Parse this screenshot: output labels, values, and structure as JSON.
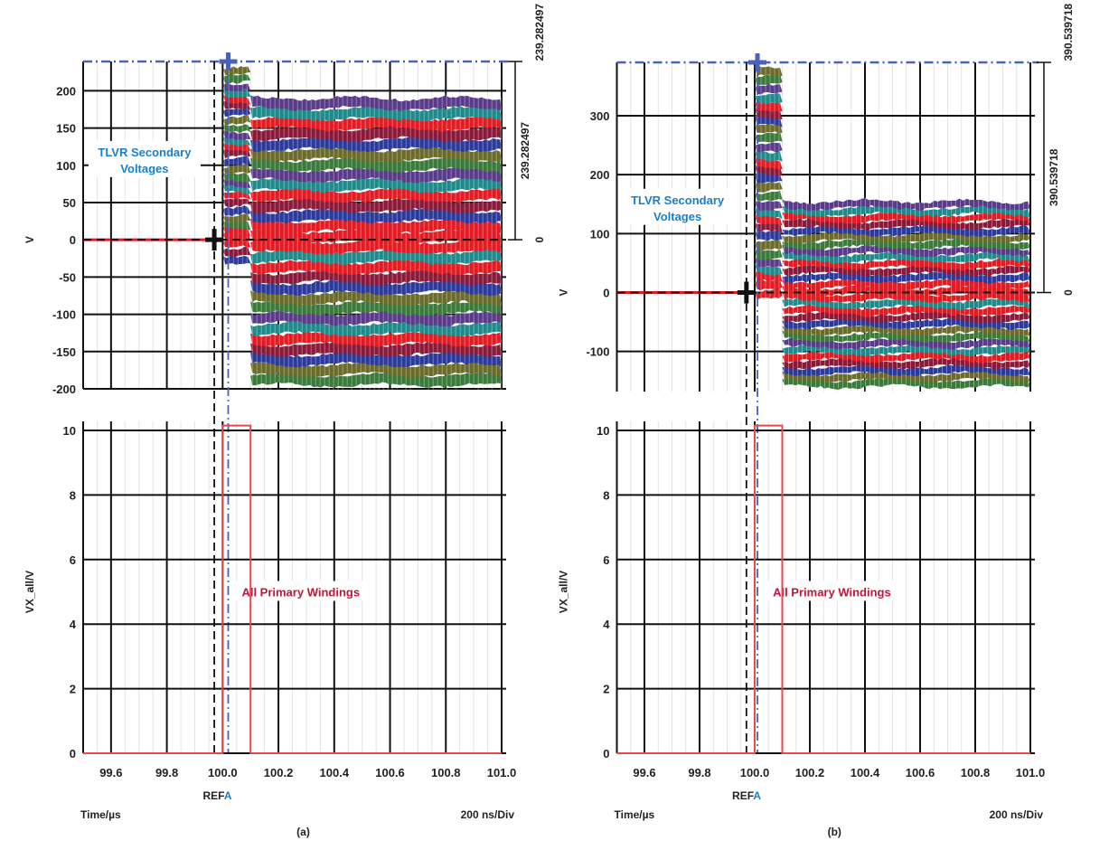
{
  "chart_data": [
    {
      "panel_label": "(a)",
      "type": "line",
      "top": {
        "ylabel": "V",
        "ylim": [
          -200,
          239.282497
        ],
        "yticks": [
          "200",
          "150",
          "100",
          "50",
          "0",
          "-50",
          "-100",
          "-150",
          "-200"
        ],
        "ytick_values": [
          200,
          150,
          100,
          50,
          0,
          -50,
          -100,
          -150,
          -200
        ],
        "annotation": [
          "TLVR Secondary",
          "Voltages"
        ],
        "annotation_color": "#1a7fc8",
        "cursor_level": 239.282497,
        "measure_labels": {
          "top": "239.282497",
          "delta": "239.282497",
          "zero": "0"
        },
        "envelope": [
          {
            "t_start": 99.5,
            "t_end": 100.0,
            "min": 0,
            "max": 0
          },
          {
            "t_start": 100.0,
            "t_end": 100.1,
            "min": -30,
            "max": 230
          },
          {
            "t_start": 100.1,
            "t_end": 101.0,
            "min": -195,
            "max": 190
          }
        ]
      },
      "bottom": {
        "ylabel": "VX_all/V",
        "ylim": [
          0,
          10
        ],
        "yticks": [
          "10",
          "8",
          "6",
          "4",
          "2",
          "0"
        ],
        "ytick_values": [
          10,
          8,
          6,
          4,
          2,
          0
        ],
        "annotation": "All Primary Windings",
        "annotation_color": "#c0143c",
        "pulse": {
          "low": 0,
          "high": 10.15,
          "t_rise": 100.0,
          "t_fall": 100.1
        }
      },
      "xlim": [
        99.5,
        101.0
      ],
      "xticks": [
        "99.6",
        "99.8",
        "100.0",
        "100.2",
        "100.4",
        "100.6",
        "100.8",
        "101.0"
      ],
      "xtick_values": [
        99.6,
        99.8,
        100.0,
        100.2,
        100.4,
        100.6,
        100.8,
        101.0
      ],
      "cursor_ref_time": 99.97,
      "cursor_a_time": 100.02,
      "ref_label": "REF",
      "ref_suffix": "A",
      "xlabel": "Time/µs",
      "timebase": "200 ns/Div"
    },
    {
      "panel_label": "(b)",
      "type": "line",
      "top": {
        "ylabel": "V",
        "ylim": [
          -168,
          390.539718
        ],
        "yticks": [
          "300",
          "200",
          "100",
          "0",
          "-100"
        ],
        "ytick_values": [
          300,
          200,
          100,
          0,
          -100
        ],
        "annotation": [
          "TLVR Secondary",
          "Voltages"
        ],
        "annotation_color": "#1a7fc8",
        "cursor_level": 390.539718,
        "measure_labels": {
          "top": "390.539718",
          "delta": "390.539718",
          "zero": "0"
        },
        "envelope": [
          {
            "t_start": 99.5,
            "t_end": 100.0,
            "min": 0,
            "max": 0
          },
          {
            "t_start": 100.0,
            "t_end": 100.1,
            "min": -10,
            "max": 380
          },
          {
            "t_start": 100.1,
            "t_end": 101.0,
            "min": -160,
            "max": 155
          }
        ]
      },
      "bottom": {
        "ylabel": "VX_all/V",
        "ylim": [
          0,
          10
        ],
        "yticks": [
          "10",
          "8",
          "6",
          "4",
          "2",
          "0"
        ],
        "ytick_values": [
          10,
          8,
          6,
          4,
          2,
          0
        ],
        "annotation": "All Primary Windings",
        "annotation_color": "#c0143c",
        "pulse": {
          "low": 0,
          "high": 10.15,
          "t_rise": 100.0,
          "t_fall": 100.1
        }
      },
      "xlim": [
        99.5,
        101.0
      ],
      "xticks": [
        "99.6",
        "99.8",
        "100.0",
        "100.2",
        "100.4",
        "100.6",
        "100.8",
        "101.0"
      ],
      "xtick_values": [
        99.6,
        99.8,
        100.0,
        100.2,
        100.4,
        100.6,
        100.8,
        101.0
      ],
      "cursor_ref_time": 99.97,
      "cursor_a_time": 100.01,
      "ref_label": "REF",
      "ref_suffix": "A",
      "xlabel": "Time/µs",
      "timebase": "200 ns/Div"
    }
  ],
  "colors": {
    "waveform_palette": [
      "#e31b23",
      "#2b3a9b",
      "#3a7a3a",
      "#1f8a8a",
      "#8b1a3a",
      "#6b6b2a",
      "#5a3a8a"
    ],
    "cursor_blue": "#4a62b8",
    "pulse_red": "#e8474f",
    "grid": "#111111"
  }
}
